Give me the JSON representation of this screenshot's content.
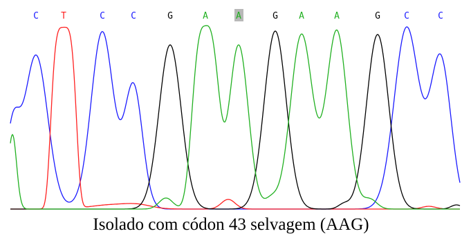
{
  "bases": [
    "C",
    "T",
    "C",
    "C",
    "G",
    "A",
    "A",
    "G",
    "A",
    "A",
    "G",
    "C",
    "C"
  ],
  "caption": "Isolado com códon 43 selvagem (AAG)"
}
